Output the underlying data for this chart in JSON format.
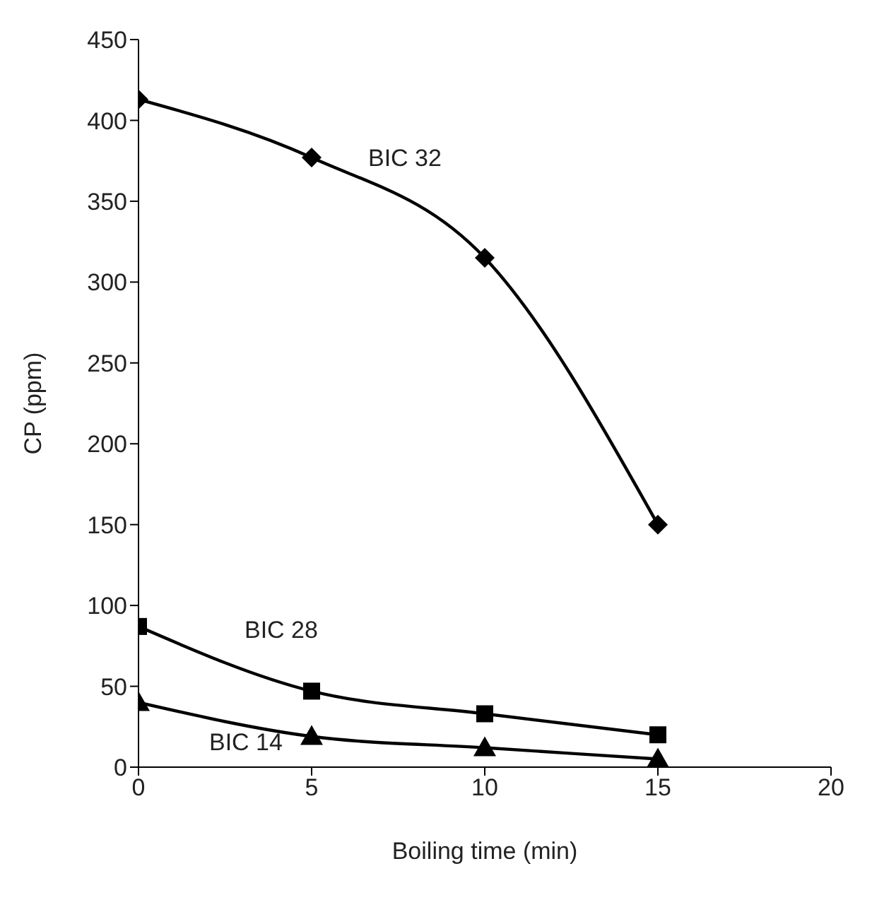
{
  "chart_data": {
    "type": "line",
    "xlabel": "Boiling time (min)",
    "ylabel": "CP (ppm)",
    "xlim": [
      0,
      20
    ],
    "xticks": [
      0,
      5,
      10,
      15,
      20
    ],
    "ylim": [
      0,
      450
    ],
    "yticks": [
      0,
      50,
      100,
      150,
      200,
      250,
      300,
      350,
      400,
      450
    ],
    "grid": false,
    "legend": false,
    "line_style": "solid",
    "series": [
      {
        "name": "BIC 32",
        "color": "#000000",
        "marker": "diamond",
        "x": [
          0,
          5,
          10,
          15
        ],
        "values": [
          413,
          377,
          315,
          150
        ]
      },
      {
        "name": "BIC 28",
        "color": "#000000",
        "marker": "square",
        "x": [
          0,
          5,
          10,
          15
        ],
        "values": [
          87,
          47,
          33,
          20
        ]
      },
      {
        "name": "BIC 14",
        "color": "#000000",
        "marker": "triangle",
        "x": [
          0,
          5,
          10,
          15
        ],
        "values": [
          40,
          19,
          12,
          5
        ]
      }
    ]
  }
}
